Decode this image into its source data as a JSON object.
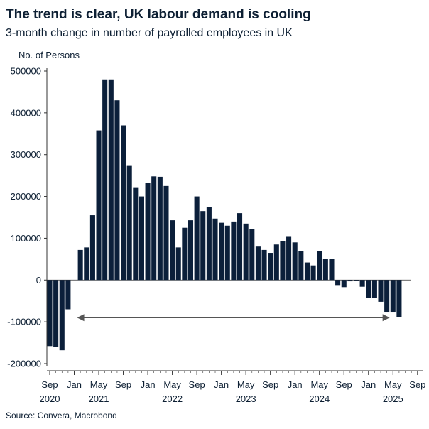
{
  "colors": {
    "bar": "#0b1f3a",
    "arrow": "#555555",
    "text": "#0d1f33"
  },
  "chart_data": {
    "type": "bar",
    "title": "The trend is clear, UK labour demand is cooling",
    "subtitle": "3-month change in number of payrolled employees in UK",
    "ylabel": "No. of Persons",
    "source": "Source: Convera, Macrobond",
    "ylim": [
      -200000,
      500000
    ],
    "yticks": [
      500000,
      400000,
      300000,
      200000,
      100000,
      0,
      -100000,
      -200000
    ],
    "ytick_labels": [
      "500000",
      "400000",
      "300000",
      "200000",
      "100000",
      "0",
      "-100000",
      "-200000"
    ],
    "grid": false,
    "x_months": [
      "2020-09",
      "2020-10",
      "2020-11",
      "2020-12",
      "2021-01",
      "2021-02",
      "2021-03",
      "2021-04",
      "2021-05",
      "2021-06",
      "2021-07",
      "2021-08",
      "2021-09",
      "2021-10",
      "2021-11",
      "2021-12",
      "2022-01",
      "2022-02",
      "2022-03",
      "2022-04",
      "2022-05",
      "2022-06",
      "2022-07",
      "2022-08",
      "2022-09",
      "2022-10",
      "2022-11",
      "2022-12",
      "2023-01",
      "2023-02",
      "2023-03",
      "2023-04",
      "2023-05",
      "2023-06",
      "2023-07",
      "2023-08",
      "2023-09",
      "2023-10",
      "2023-11",
      "2023-12",
      "2024-01",
      "2024-02",
      "2024-03",
      "2024-04",
      "2024-05",
      "2024-06",
      "2024-07",
      "2024-08",
      "2024-09",
      "2024-10",
      "2024-11",
      "2024-12",
      "2025-01",
      "2025-02",
      "2025-03",
      "2025-04",
      "2025-05",
      "2025-06"
    ],
    "values": [
      -158000,
      -160000,
      -168000,
      -70000,
      0,
      72000,
      78000,
      155000,
      358000,
      480000,
      480000,
      430000,
      370000,
      273000,
      222000,
      200000,
      232000,
      248000,
      247000,
      225000,
      143000,
      78000,
      125000,
      143000,
      200000,
      165000,
      175000,
      147000,
      137000,
      130000,
      140000,
      160000,
      135000,
      122000,
      80000,
      72000,
      65000,
      85000,
      93000,
      105000,
      90000,
      70000,
      42000,
      35000,
      70000,
      50000,
      50000,
      -12000,
      -17000,
      -3000,
      -2000,
      -16000,
      -42000,
      -42000,
      -52000,
      -76000,
      -76000,
      -88000
    ],
    "x_tick_labels": [
      {
        "month": "2020-09",
        "label": "Sep"
      },
      {
        "month": "2021-01",
        "label": "Jan"
      },
      {
        "month": "2021-05",
        "label": "May"
      },
      {
        "month": "2021-09",
        "label": "Sep"
      },
      {
        "month": "2022-01",
        "label": "Jan"
      },
      {
        "month": "2022-05",
        "label": "May"
      },
      {
        "month": "2022-09",
        "label": "Sep"
      },
      {
        "month": "2023-01",
        "label": "Jan"
      },
      {
        "month": "2023-05",
        "label": "May"
      },
      {
        "month": "2023-09",
        "label": "Sep"
      },
      {
        "month": "2024-01",
        "label": "Jan"
      },
      {
        "month": "2024-05",
        "label": "May"
      },
      {
        "month": "2024-09",
        "label": "Sep"
      },
      {
        "month": "2025-01",
        "label": "Jan"
      },
      {
        "month": "2025-05",
        "label": "May"
      },
      {
        "month": "2025-09",
        "label": "Sep"
      }
    ],
    "year_labels": [
      {
        "month": "2020-09",
        "label": "2020"
      },
      {
        "month": "2021-05",
        "label": "2021"
      },
      {
        "month": "2022-05",
        "label": "2022"
      },
      {
        "month": "2023-05",
        "label": "2023"
      },
      {
        "month": "2024-05",
        "label": "2024"
      },
      {
        "month": "2025-05",
        "label": "2025"
      }
    ],
    "annotation": {
      "type": "double-arrow",
      "from": "2021-01",
      "to": "2025-04",
      "y": -90000
    }
  }
}
